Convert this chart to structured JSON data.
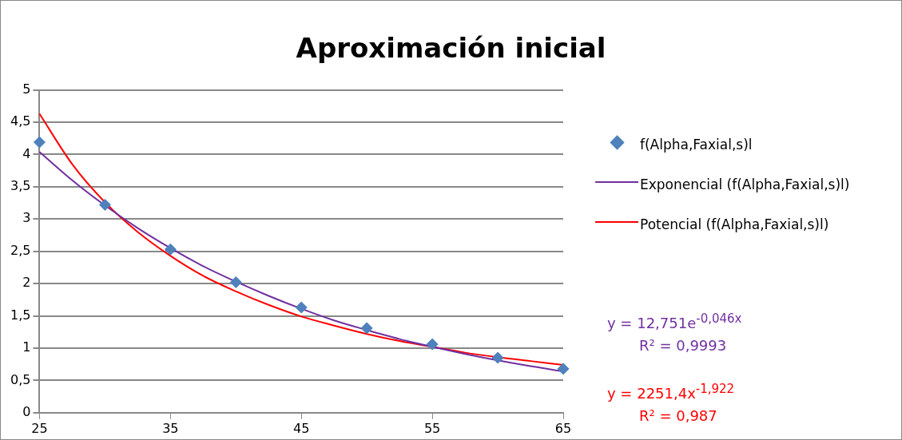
{
  "chart_data": {
    "type": "scatter",
    "title": "Aproximación inicial",
    "xlim": [
      25,
      65
    ],
    "xticks": [
      25,
      35,
      45,
      55,
      65
    ],
    "ylim": [
      0,
      5
    ],
    "yticks": [
      0,
      {
        "value": 0.5,
        "label": "0,5"
      },
      1,
      {
        "value": 1.5,
        "label": "1,5"
      },
      2,
      {
        "value": 2.5,
        "label": "2,5"
      },
      3,
      {
        "value": 3.5,
        "label": "3,5"
      },
      4,
      {
        "value": 4.5,
        "label": "4,5"
      },
      5
    ],
    "grid": "y",
    "legend": "right",
    "series": [
      {
        "name": "f(Alpha,Faxial,s)l",
        "marker": "diamond",
        "color": "#4f81bd",
        "x": [
          25,
          30,
          35,
          40,
          45,
          50,
          55,
          60,
          65
        ],
        "values": [
          4.19,
          3.22,
          2.53,
          2.02,
          1.63,
          1.31,
          1.06,
          0.85,
          0.68
        ]
      },
      {
        "name": "Exponencial (f(Alpha,Faxial,s)l)",
        "type": "line",
        "marker": "none",
        "color": "#7030a0",
        "x": [
          25,
          27.5,
          30,
          32.5,
          35,
          37.5,
          40,
          42.5,
          45,
          47.5,
          50,
          52.5,
          55,
          57.5,
          60,
          62.5,
          65
        ],
        "values": [
          4.04,
          3.6,
          3.21,
          2.86,
          2.55,
          2.27,
          2.03,
          1.81,
          1.61,
          1.43,
          1.28,
          1.14,
          1.02,
          0.91,
          0.81,
          0.72,
          0.64
        ]
      },
      {
        "name": "Potencial (f(Alpha,Faxial,s)l)",
        "type": "line",
        "marker": "none",
        "color": "#ff0000",
        "x": [
          25,
          27.5,
          30,
          32.5,
          35,
          37.5,
          40,
          42.5,
          45,
          47.5,
          50,
          52.5,
          55,
          57.5,
          60,
          62.5,
          65
        ],
        "values": [
          4.63,
          3.85,
          3.26,
          2.8,
          2.43,
          2.12,
          1.88,
          1.67,
          1.49,
          1.35,
          1.22,
          1.11,
          1.02,
          0.93,
          0.86,
          0.8,
          0.74
        ]
      }
    ],
    "annotations": [
      "y = 12,751e$^{-0,046x}$",
      "R² = 0,9993",
      "y = 2251,4x$^{-1,922}$",
      "R² = 0,987"
    ]
  }
}
